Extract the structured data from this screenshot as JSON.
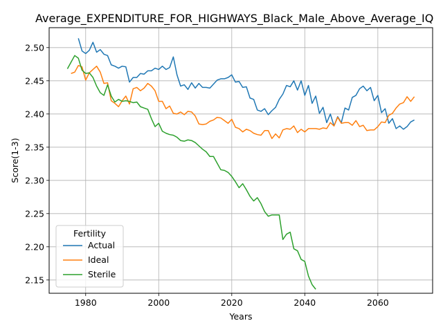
{
  "chart_data": {
    "type": "line",
    "title": "Average_EXPENDITURE_FOR_HIGHWAYS_Black_Male_Above_Average_IQ",
    "xlabel": "Years",
    "ylabel": "Score(1-3)",
    "xlim": [
      1970,
      2075
    ],
    "ylim": [
      2.13,
      2.53
    ],
    "x_ticks": [
      1980,
      2000,
      2020,
      2040,
      2060
    ],
    "x_tick_labels": [
      "1980",
      "2000",
      "2020",
      "2040",
      "2060"
    ],
    "y_ticks": [
      2.15,
      2.2,
      2.25,
      2.3,
      2.35,
      2.4,
      2.45,
      2.5
    ],
    "y_tick_labels": [
      "2.15",
      "2.20",
      "2.25",
      "2.30",
      "2.35",
      "2.40",
      "2.45",
      "2.50"
    ],
    "grid": true,
    "legend": {
      "title": "Fertility",
      "position": "lower-left"
    },
    "series": [
      {
        "name": "Actual",
        "color": "#1f77b4",
        "start_year": 1978,
        "values": [
          2.514,
          2.495,
          2.491,
          2.496,
          2.508,
          2.493,
          2.497,
          2.49,
          2.488,
          2.474,
          2.472,
          2.469,
          2.472,
          2.471,
          2.448,
          2.455,
          2.455,
          2.461,
          2.46,
          2.465,
          2.465,
          2.469,
          2.467,
          2.472,
          2.467,
          2.47,
          2.486,
          2.459,
          2.442,
          2.444,
          2.437,
          2.447,
          2.439,
          2.446,
          2.44,
          2.44,
          2.439,
          2.445,
          2.451,
          2.453,
          2.453,
          2.455,
          2.459,
          2.448,
          2.449,
          2.44,
          2.441,
          2.424,
          2.422,
          2.406,
          2.404,
          2.408,
          2.399,
          2.405,
          2.41,
          2.422,
          2.43,
          2.443,
          2.441,
          2.45,
          2.436,
          2.45,
          2.428,
          2.443,
          2.416,
          2.427,
          2.401,
          2.41,
          2.387,
          2.4,
          2.382,
          2.396,
          2.387,
          2.409,
          2.406,
          2.425,
          2.428,
          2.438,
          2.442,
          2.435,
          2.44,
          2.42,
          2.428,
          2.402,
          2.408,
          2.386,
          2.393,
          2.378,
          2.382,
          2.377,
          2.381,
          2.388,
          2.391
        ]
      },
      {
        "name": "Ideal",
        "color": "#ff7f0e",
        "start_year": 1976,
        "values": [
          2.461,
          2.463,
          2.473,
          2.471,
          2.451,
          2.462,
          2.467,
          2.472,
          2.463,
          2.446,
          2.447,
          2.42,
          2.416,
          2.411,
          2.42,
          2.427,
          2.415,
          2.438,
          2.44,
          2.435,
          2.439,
          2.446,
          2.442,
          2.435,
          2.419,
          2.419,
          2.408,
          2.412,
          2.401,
          2.4,
          2.403,
          2.399,
          2.404,
          2.403,
          2.397,
          2.385,
          2.384,
          2.385,
          2.389,
          2.391,
          2.395,
          2.394,
          2.39,
          2.386,
          2.392,
          2.38,
          2.378,
          2.373,
          2.377,
          2.375,
          2.371,
          2.369,
          2.368,
          2.375,
          2.375,
          2.363,
          2.37,
          2.364,
          2.376,
          2.378,
          2.377,
          2.382,
          2.372,
          2.377,
          2.373,
          2.378,
          2.378,
          2.378,
          2.377,
          2.379,
          2.378,
          2.387,
          2.382,
          2.395,
          2.386,
          2.387,
          2.387,
          2.383,
          2.39,
          2.381,
          2.383,
          2.375,
          2.376,
          2.376,
          2.381,
          2.388,
          2.387,
          2.398,
          2.401,
          2.409,
          2.415,
          2.417,
          2.426,
          2.419,
          2.426
        ]
      },
      {
        "name": "Sterile",
        "color": "#2ca02c",
        "start_year": 1975,
        "values": [
          2.468,
          2.478,
          2.488,
          2.484,
          2.466,
          2.461,
          2.462,
          2.455,
          2.442,
          2.432,
          2.428,
          2.444,
          2.427,
          2.418,
          2.422,
          2.419,
          2.42,
          2.419,
          2.417,
          2.418,
          2.411,
          2.409,
          2.407,
          2.393,
          2.381,
          2.386,
          2.374,
          2.371,
          2.369,
          2.368,
          2.365,
          2.36,
          2.359,
          2.361,
          2.36,
          2.357,
          2.352,
          2.347,
          2.343,
          2.336,
          2.336,
          2.326,
          2.316,
          2.315,
          2.312,
          2.306,
          2.298,
          2.289,
          2.295,
          2.286,
          2.276,
          2.269,
          2.274,
          2.265,
          2.253,
          2.246,
          2.248,
          2.248,
          2.248,
          2.211,
          2.219,
          2.222,
          2.197,
          2.194,
          2.181,
          2.178,
          2.156,
          2.143,
          2.136
        ]
      }
    ]
  }
}
